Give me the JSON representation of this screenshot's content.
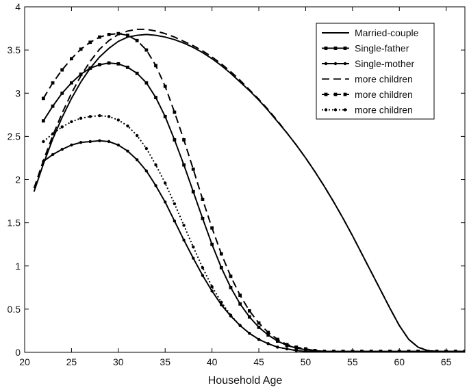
{
  "chart_data": {
    "type": "line",
    "title": "",
    "xlabel": "Household Age",
    "ylabel": "",
    "xlim": [
      20,
      67
    ],
    "ylim": [
      0,
      4
    ],
    "xticks": [
      20,
      25,
      30,
      35,
      40,
      45,
      50,
      55,
      60,
      65
    ],
    "yticks": [
      0,
      0.5,
      1,
      1.5,
      2,
      2.5,
      3,
      3.5,
      4
    ],
    "xtick_labels": [
      "20",
      "25",
      "30",
      "35",
      "40",
      "45",
      "50",
      "55",
      "60",
      "65"
    ],
    "ytick_labels": [
      "0",
      "0.5",
      "1",
      "1.5",
      "2",
      "2.5",
      "3",
      "3.5",
      "4"
    ],
    "grid": false,
    "legend_position": "top-right",
    "series": [
      {
        "name": "Married-couple",
        "line": "solid",
        "marker": "none",
        "x": [
          21,
          22,
          23,
          24,
          25,
          26,
          27,
          28,
          29,
          30,
          31,
          32,
          33,
          34,
          35,
          36,
          37,
          38,
          39,
          40,
          41,
          42,
          43,
          44,
          45,
          46,
          47,
          48,
          49,
          50,
          51,
          52,
          53,
          54,
          55,
          56,
          57,
          58,
          59,
          60,
          61,
          62,
          63,
          64,
          65,
          66,
          67
        ],
        "values": [
          1.86,
          2.18,
          2.47,
          2.72,
          2.94,
          3.13,
          3.29,
          3.42,
          3.52,
          3.6,
          3.65,
          3.67,
          3.68,
          3.67,
          3.65,
          3.62,
          3.58,
          3.53,
          3.47,
          3.4,
          3.32,
          3.23,
          3.13,
          3.03,
          2.92,
          2.8,
          2.67,
          2.54,
          2.4,
          2.25,
          2.09,
          1.92,
          1.74,
          1.55,
          1.35,
          1.14,
          0.93,
          0.72,
          0.51,
          0.31,
          0.15,
          0.06,
          0.02,
          0.01,
          0.01,
          0.01,
          0.01
        ]
      },
      {
        "name": "Single-father",
        "line": "solid",
        "marker": "square",
        "x": [
          22,
          23,
          24,
          25,
          26,
          27,
          28,
          29,
          30,
          31,
          32,
          33,
          34,
          35,
          36,
          37,
          38,
          39,
          40,
          41,
          42,
          43,
          44,
          45,
          46,
          47,
          48,
          49,
          50,
          51,
          52,
          53,
          54,
          55,
          56,
          57,
          58,
          59,
          60,
          61,
          62,
          63,
          64,
          65,
          66,
          67
        ],
        "values": [
          2.68,
          2.85,
          3.0,
          3.12,
          3.22,
          3.29,
          3.33,
          3.35,
          3.34,
          3.3,
          3.23,
          3.12,
          2.95,
          2.73,
          2.46,
          2.17,
          1.86,
          1.55,
          1.25,
          0.98,
          0.75,
          0.56,
          0.41,
          0.29,
          0.2,
          0.13,
          0.08,
          0.05,
          0.03,
          0.02,
          0.01,
          0.01,
          0.01,
          0.01,
          0.01,
          0.01,
          0.01,
          0.01,
          0.01,
          0.01,
          0.01,
          0.01,
          0.01,
          0.01,
          0.01,
          0.01
        ]
      },
      {
        "name": "Single-mother",
        "line": "solid",
        "marker": "dot",
        "x": [
          22,
          23,
          24,
          25,
          26,
          27,
          28,
          29,
          30,
          31,
          32,
          33,
          34,
          35,
          36,
          37,
          38,
          39,
          40,
          41,
          42,
          43,
          44,
          45,
          46,
          47,
          48,
          49,
          50,
          51,
          52,
          53,
          54,
          55,
          56,
          57,
          58,
          59,
          60,
          61,
          62,
          63,
          64,
          65,
          66,
          67
        ],
        "values": [
          2.21,
          2.29,
          2.35,
          2.4,
          2.43,
          2.44,
          2.45,
          2.44,
          2.4,
          2.33,
          2.23,
          2.1,
          1.93,
          1.74,
          1.52,
          1.3,
          1.09,
          0.89,
          0.71,
          0.55,
          0.42,
          0.31,
          0.22,
          0.15,
          0.1,
          0.06,
          0.04,
          0.02,
          0.01,
          0.01,
          0.01,
          0.01,
          0.01,
          0.01,
          0.01,
          0.01,
          0.01,
          0.01,
          0.01,
          0.01,
          0.01,
          0.01,
          0.01,
          0.01,
          0.01,
          0.01
        ]
      },
      {
        "name": "more children",
        "line": "dashed",
        "marker": "none",
        "x": [
          21,
          22,
          23,
          24,
          25,
          26,
          27,
          28,
          29,
          30,
          31,
          32,
          33,
          34,
          35,
          36,
          37,
          38,
          39,
          40,
          41,
          42,
          43,
          44,
          45,
          46,
          47,
          48,
          49,
          50,
          51,
          52,
          53,
          54,
          55,
          56,
          57,
          58,
          59,
          60,
          61,
          62,
          63,
          64,
          65,
          66,
          67
        ],
        "values": [
          1.9,
          2.22,
          2.51,
          2.77,
          3.0,
          3.2,
          3.37,
          3.51,
          3.61,
          3.68,
          3.72,
          3.74,
          3.74,
          3.72,
          3.69,
          3.65,
          3.6,
          3.55,
          3.49,
          3.42,
          3.34,
          3.25,
          3.15,
          3.04,
          2.93,
          2.81,
          2.68,
          2.54,
          2.4,
          2.25,
          2.09,
          1.92,
          1.74,
          1.55,
          1.35,
          1.14,
          0.93,
          0.72,
          0.51,
          0.31,
          0.15,
          0.06,
          0.02,
          0.01,
          0.01,
          0.01,
          0.01
        ]
      },
      {
        "name": "more children",
        "line": "dashed",
        "marker": "square",
        "x": [
          22,
          23,
          24,
          25,
          26,
          27,
          28,
          29,
          30,
          31,
          32,
          33,
          34,
          35,
          36,
          37,
          38,
          39,
          40,
          41,
          42,
          43,
          44,
          45,
          46,
          47,
          48,
          49,
          50,
          51,
          52,
          53,
          54,
          55,
          56,
          57,
          58,
          59,
          60,
          61,
          62,
          63,
          64,
          65,
          66,
          67
        ],
        "values": [
          2.94,
          3.12,
          3.27,
          3.4,
          3.51,
          3.59,
          3.65,
          3.68,
          3.69,
          3.67,
          3.61,
          3.5,
          3.32,
          3.08,
          2.78,
          2.46,
          2.12,
          1.77,
          1.44,
          1.14,
          0.88,
          0.66,
          0.48,
          0.34,
          0.23,
          0.15,
          0.09,
          0.06,
          0.04,
          0.02,
          0.01,
          0.01,
          0.01,
          0.01,
          0.01,
          0.01,
          0.01,
          0.01,
          0.01,
          0.01,
          0.01,
          0.01,
          0.01,
          0.01,
          0.01,
          0.01
        ]
      },
      {
        "name": "more children",
        "line": "dotted",
        "marker": "dot",
        "x": [
          22,
          23,
          24,
          25,
          26,
          27,
          28,
          29,
          30,
          31,
          32,
          33,
          34,
          35,
          36,
          37,
          38,
          39,
          40,
          41,
          42,
          43,
          44,
          45,
          46,
          47,
          48,
          49,
          50,
          51,
          52,
          53,
          54,
          55,
          56,
          57,
          58,
          59,
          60,
          61,
          62,
          63,
          64,
          65,
          66,
          67
        ],
        "values": [
          2.44,
          2.53,
          2.61,
          2.67,
          2.71,
          2.73,
          2.74,
          2.73,
          2.69,
          2.62,
          2.51,
          2.36,
          2.17,
          1.96,
          1.72,
          1.47,
          1.22,
          0.98,
          0.76,
          0.58,
          0.43,
          0.31,
          0.22,
          0.15,
          0.1,
          0.06,
          0.04,
          0.02,
          0.01,
          0.01,
          0.01,
          0.01,
          0.01,
          0.01,
          0.01,
          0.01,
          0.01,
          0.01,
          0.01,
          0.01,
          0.01,
          0.01,
          0.01,
          0.01,
          0.01,
          0.01
        ]
      }
    ]
  }
}
